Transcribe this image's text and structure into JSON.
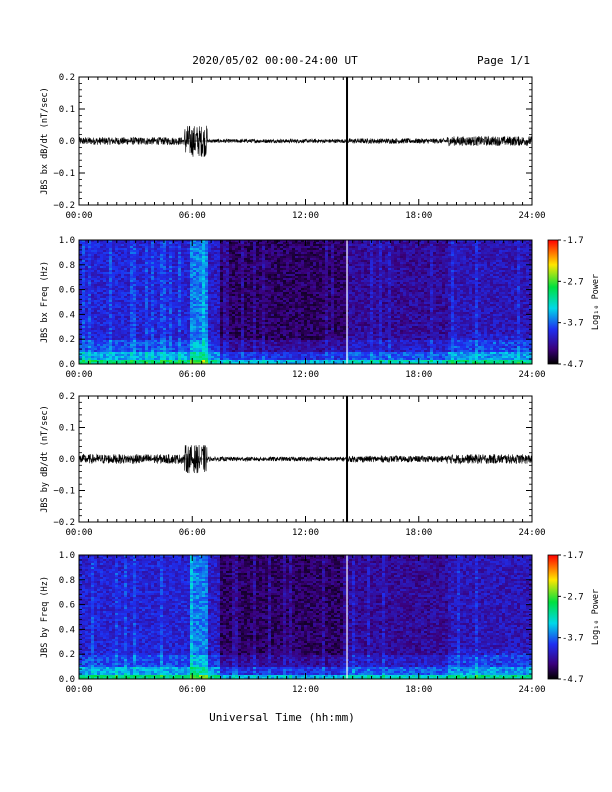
{
  "header": {
    "title": "2020/05/02  00:00-24:00 UT",
    "page": "Page 1/1"
  },
  "x_axis": {
    "label": "Universal Time (hh:mm)",
    "ticks": [
      "00:00",
      "06:00",
      "12:00",
      "18:00",
      "24:00"
    ]
  },
  "panels": [
    {
      "type": "line",
      "ylabel": "JBS bx dB/dt (nT/sec)",
      "ylim": [
        -0.2,
        0.2
      ],
      "ytick_labels": [
        "0.2",
        "0.1",
        "0.0",
        "−0.1",
        "−0.2"
      ],
      "gap_marker_hour": 14.2,
      "activity": [
        {
          "start_hour": 0.0,
          "end_hour": 5.6,
          "amplitude": 0.012
        },
        {
          "start_hour": 5.6,
          "end_hour": 6.8,
          "amplitude": 0.05
        },
        {
          "start_hour": 6.8,
          "end_hour": 14.2,
          "amplitude": 0.006
        },
        {
          "start_hour": 14.2,
          "end_hour": 19.5,
          "amplitude": 0.008
        },
        {
          "start_hour": 19.5,
          "end_hour": 24.0,
          "amplitude": 0.015
        }
      ]
    },
    {
      "type": "heatmap",
      "ylabel": "JBS bx Freq (Hz)",
      "ylim": [
        0.0,
        1.0
      ],
      "ytick_labels": [
        "1.0",
        "0.8",
        "0.6",
        "0.4",
        "0.2",
        "0.0"
      ],
      "gap_marker_hour": 14.2,
      "colorbar": {
        "label": "Log₁₀ Power",
        "tick_labels": [
          "-1.7",
          "-2.7",
          "-3.7",
          "-4.7"
        ]
      }
    },
    {
      "type": "line",
      "ylabel": "JBS by dB/dt (nT/sec)",
      "ylim": [
        -0.2,
        0.2
      ],
      "ytick_labels": [
        "0.2",
        "0.1",
        "0.0",
        "−0.1",
        "−0.2"
      ],
      "gap_marker_hour": 14.2,
      "activity": [
        {
          "start_hour": 0.0,
          "end_hour": 5.6,
          "amplitude": 0.015
        },
        {
          "start_hour": 5.6,
          "end_hour": 6.8,
          "amplitude": 0.045
        },
        {
          "start_hour": 6.8,
          "end_hour": 14.2,
          "amplitude": 0.007
        },
        {
          "start_hour": 14.2,
          "end_hour": 19.5,
          "amplitude": 0.01
        },
        {
          "start_hour": 19.5,
          "end_hour": 24.0,
          "amplitude": 0.015
        }
      ]
    },
    {
      "type": "heatmap",
      "ylabel": "JBS by Freq (Hz)",
      "ylim": [
        0.0,
        1.0
      ],
      "ytick_labels": [
        "1.0",
        "0.8",
        "0.6",
        "0.4",
        "0.2",
        "0.0"
      ],
      "gap_marker_hour": 14.2,
      "colorbar": {
        "label": "Log₁₀ Power",
        "tick_labels": [
          "-1.7",
          "-2.7",
          "-3.7",
          "-4.7"
        ]
      }
    }
  ],
  "chart_data": [
    {
      "type": "line",
      "ylabel": "JBS bx dB/dt (nT/sec)",
      "ylim": [
        -0.2,
        0.2
      ],
      "xlim_hours": [
        0,
        24
      ]
    },
    {
      "type": "heatmap",
      "ylabel": "JBS bx Freq (Hz)",
      "ylim": [
        0.0,
        1.0
      ],
      "xlim_hours": [
        0,
        24
      ],
      "colorbar_range": [
        -4.7,
        -1.7
      ]
    },
    {
      "type": "line",
      "ylabel": "JBS by dB/dt (nT/sec)",
      "ylim": [
        -0.2,
        0.2
      ],
      "xlim_hours": [
        0,
        24
      ]
    },
    {
      "type": "heatmap",
      "ylabel": "JBS by Freq (Hz)",
      "ylim": [
        0.0,
        1.0
      ],
      "xlim_hours": [
        0,
        24
      ],
      "colorbar_range": [
        -4.7,
        -1.7
      ]
    }
  ]
}
